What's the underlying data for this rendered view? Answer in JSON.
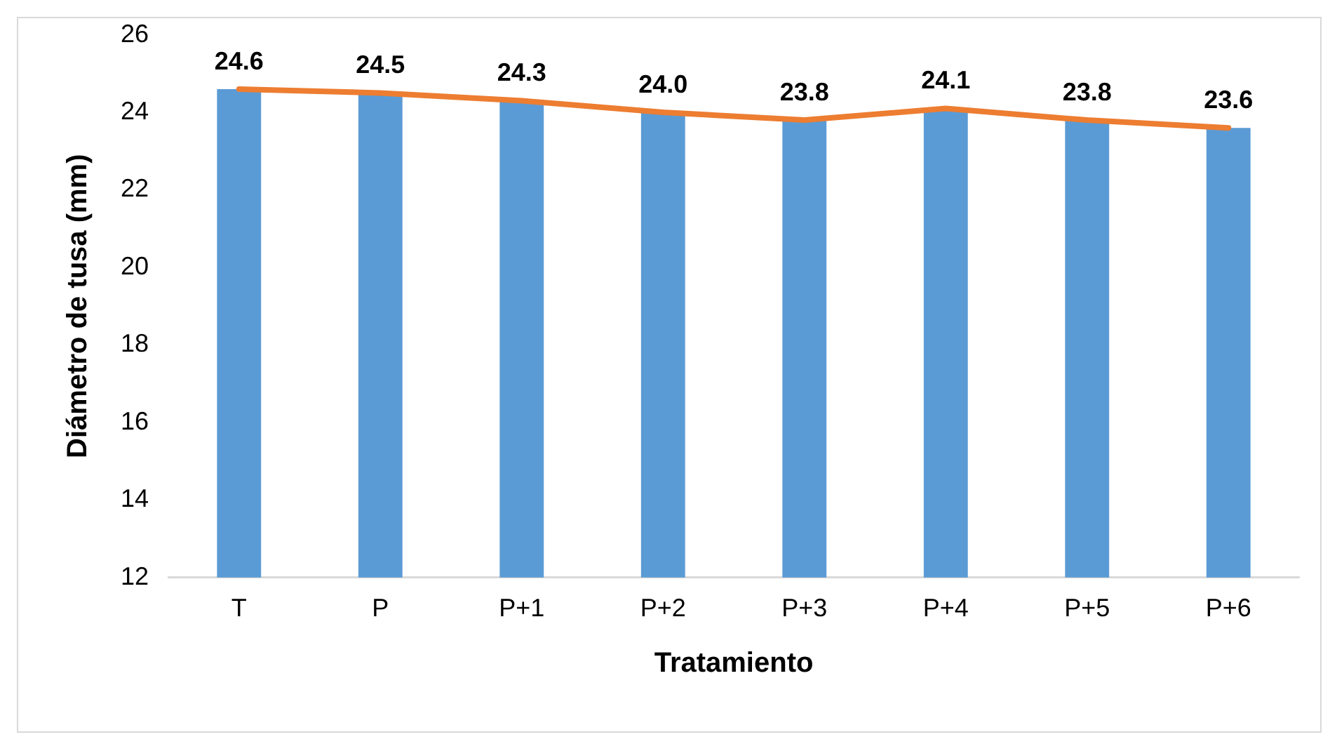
{
  "chart_data": {
    "type": "bar",
    "xlabel": "Tratamiento",
    "ylabel": "Diámetro de tusa (mm)",
    "categories": [
      "T",
      "P",
      "P+1",
      "P+2",
      "P+3",
      "P+4",
      "P+5",
      "P+6"
    ],
    "series": [
      {
        "color": "#5b9bd5",
        "values": [
          24.6,
          24.5,
          24.3,
          24.0,
          23.8,
          24.1,
          23.8,
          23.6
        ]
      },
      {
        "type": "line",
        "color": "#ed7d31",
        "values": [
          24.6,
          24.5,
          24.3,
          24.0,
          23.8,
          24.1,
          23.8,
          23.6
        ],
        "value_labels": [
          "24.6",
          "24.5",
          "24.3",
          "24.0",
          "23.8",
          "24.1",
          "23.8",
          "23.6"
        ],
        "marker": "none"
      }
    ],
    "ylim": [
      12,
      26
    ],
    "yticks": [
      12,
      14,
      16,
      18,
      20,
      22,
      24,
      26
    ],
    "grid": false,
    "legend": false
  }
}
